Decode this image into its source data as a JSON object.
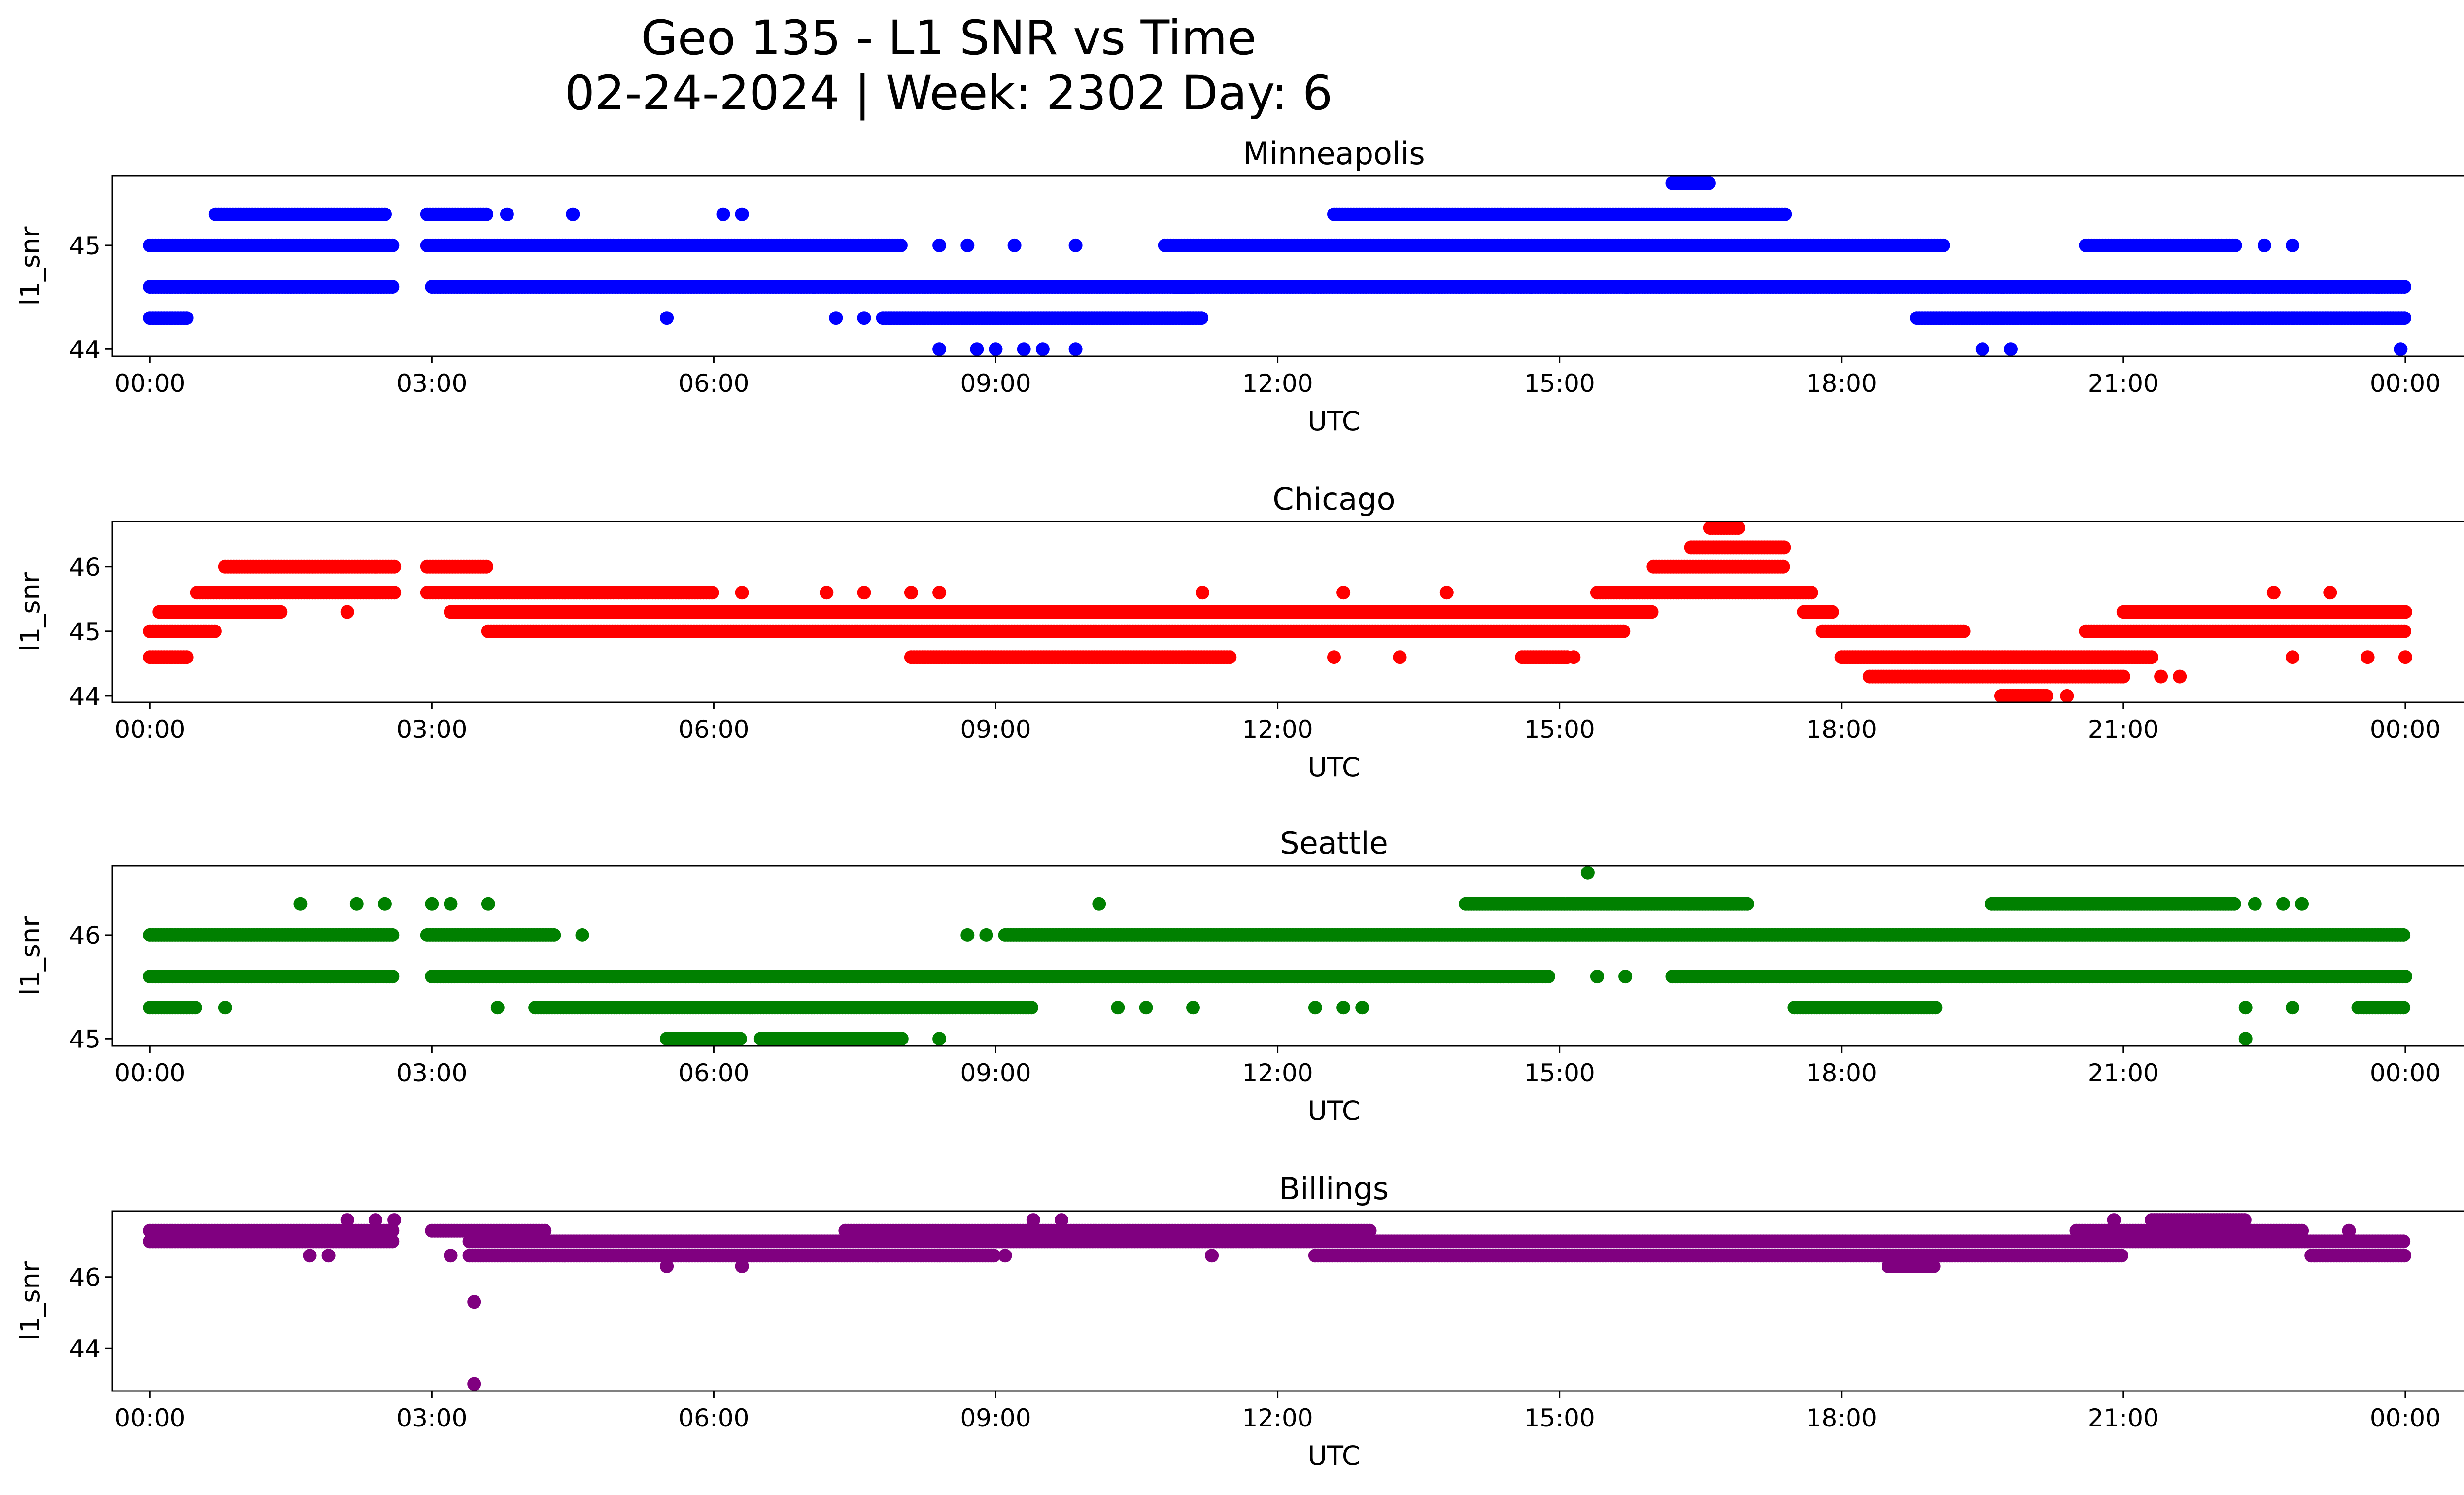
{
  "figure": {
    "title_line1": "Geo 135 - L1 SNR vs Time",
    "title_line2": "02-24-2024 | Week: 2302 Day: 6"
  },
  "chart_data": [
    {
      "type": "scatter",
      "title": "Minneapolis",
      "xlabel": "UTC",
      "ylabel": "l1_snr",
      "color": "#0000ff",
      "xlim": [
        -0.4,
        25.6
      ],
      "ylim": [
        43.93,
        45.67
      ],
      "xticks": [
        "00:00",
        "03:00",
        "06:00",
        "09:00",
        "12:00",
        "15:00",
        "18:00",
        "21:00",
        "00:00"
      ],
      "yticks": [
        44,
        45
      ],
      "bands": [
        {
          "y": 44.3,
          "ranges": [
            [
              0.0,
              0.4
            ],
            [
              18.8,
              24.0
            ]
          ]
        },
        {
          "y": 44.3,
          "ranges": [
            [
              7.8,
              11.2
            ]
          ]
        },
        {
          "y": 44.6,
          "ranges": [
            [
              0.0,
              2.6
            ],
            [
              3.0,
              11.1
            ],
            [
              10.9,
              17.0
            ],
            [
              17.0,
              24.0
            ]
          ]
        },
        {
          "y": 45.0,
          "ranges": [
            [
              0.0,
              2.6
            ],
            [
              2.95,
              8.0
            ],
            [
              10.8,
              19.1
            ],
            [
              20.6,
              22.2
            ]
          ]
        },
        {
          "y": 45.3,
          "ranges": [
            [
              0.7,
              2.5
            ],
            [
              2.95,
              3.6
            ],
            [
              12.6,
              17.4
            ]
          ]
        },
        {
          "y": 45.6,
          "ranges": [
            [
              16.2,
              16.6
            ]
          ]
        }
      ],
      "points": [
        {
          "x": 3.8,
          "y": 45.3
        },
        {
          "x": 4.5,
          "y": 45.3
        },
        {
          "x": 6.1,
          "y": 45.3
        },
        {
          "x": 6.3,
          "y": 45.3
        },
        {
          "x": 8.4,
          "y": 45.0
        },
        {
          "x": 8.7,
          "y": 45.0
        },
        {
          "x": 9.2,
          "y": 45.0
        },
        {
          "x": 9.85,
          "y": 45.0
        },
        {
          "x": 22.5,
          "y": 45.0
        },
        {
          "x": 22.8,
          "y": 45.0
        },
        {
          "x": 14.7,
          "y": 44.6
        },
        {
          "x": 15.7,
          "y": 44.6
        },
        {
          "x": 5.5,
          "y": 44.3
        },
        {
          "x": 7.3,
          "y": 44.3
        },
        {
          "x": 7.6,
          "y": 44.3
        },
        {
          "x": 8.4,
          "y": 44.0
        },
        {
          "x": 8.8,
          "y": 44.0
        },
        {
          "x": 9.0,
          "y": 44.0
        },
        {
          "x": 9.3,
          "y": 44.0
        },
        {
          "x": 9.5,
          "y": 44.0
        },
        {
          "x": 9.85,
          "y": 44.0
        },
        {
          "x": 19.5,
          "y": 44.0
        },
        {
          "x": 19.8,
          "y": 44.0
        },
        {
          "x": 23.95,
          "y": 44.0
        }
      ]
    },
    {
      "type": "scatter",
      "title": "Chicago",
      "xlabel": "UTC",
      "ylabel": "l1_snr",
      "color": "#ff0000",
      "xlim": [
        -0.4,
        25.6
      ],
      "ylim": [
        43.9,
        46.7
      ],
      "xticks": [
        "00:00",
        "03:00",
        "06:00",
        "09:00",
        "12:00",
        "15:00",
        "18:00",
        "21:00",
        "00:00"
      ],
      "yticks": [
        44,
        45,
        46
      ],
      "bands": [
        {
          "y": 44.0,
          "ranges": [
            [
              19.7,
              20.2
            ]
          ]
        },
        {
          "y": 44.3,
          "ranges": [
            [
              18.3,
              21.0
            ]
          ]
        },
        {
          "y": 44.6,
          "ranges": [
            [
              0.0,
              0.4
            ],
            [
              8.1,
              11.5
            ],
            [
              14.6,
              15.1
            ],
            [
              18.0,
              21.3
            ]
          ]
        },
        {
          "y": 45.0,
          "ranges": [
            [
              0.0,
              0.7
            ],
            [
              3.6,
              8.0
            ],
            [
              8.0,
              15.7
            ],
            [
              17.8,
              19.3
            ],
            [
              20.6,
              24.0
            ]
          ]
        },
        {
          "y": 45.3,
          "ranges": [
            [
              0.1,
              1.4
            ],
            [
              3.2,
              16.0
            ],
            [
              17.6,
              17.9
            ],
            [
              21.0,
              24.0
            ]
          ]
        },
        {
          "y": 45.6,
          "ranges": [
            [
              0.5,
              2.6
            ],
            [
              2.95,
              6.0
            ],
            [
              15.4,
              17.7
            ]
          ]
        },
        {
          "y": 46.0,
          "ranges": [
            [
              0.8,
              2.6
            ],
            [
              2.95,
              3.6
            ],
            [
              16.0,
              17.4
            ]
          ]
        },
        {
          "y": 46.3,
          "ranges": [
            [
              16.4,
              17.4
            ]
          ]
        },
        {
          "y": 46.6,
          "ranges": [
            [
              16.6,
              16.9
            ]
          ]
        }
      ],
      "points": [
        {
          "x": 6.3,
          "y": 45.6
        },
        {
          "x": 7.2,
          "y": 45.6
        },
        {
          "x": 7.6,
          "y": 45.6
        },
        {
          "x": 8.1,
          "y": 45.6
        },
        {
          "x": 8.4,
          "y": 45.6
        },
        {
          "x": 11.2,
          "y": 45.6
        },
        {
          "x": 12.7,
          "y": 45.6
        },
        {
          "x": 13.8,
          "y": 45.6
        },
        {
          "x": 22.6,
          "y": 45.6
        },
        {
          "x": 23.2,
          "y": 45.6
        },
        {
          "x": 2.1,
          "y": 45.3
        },
        {
          "x": 12.6,
          "y": 44.6
        },
        {
          "x": 13.3,
          "y": 44.6
        },
        {
          "x": 15.15,
          "y": 44.6
        },
        {
          "x": 22.8,
          "y": 44.6
        },
        {
          "x": 23.6,
          "y": 44.6
        },
        {
          "x": 24.0,
          "y": 44.6
        },
        {
          "x": 21.4,
          "y": 44.3
        },
        {
          "x": 21.6,
          "y": 44.3
        },
        {
          "x": 20.4,
          "y": 44.0
        }
      ]
    },
    {
      "type": "scatter",
      "title": "Seattle",
      "xlabel": "UTC",
      "ylabel": "l1_snr",
      "color": "#008000",
      "xlim": [
        -0.4,
        25.6
      ],
      "ylim": [
        44.93,
        46.67
      ],
      "xticks": [
        "00:00",
        "03:00",
        "06:00",
        "09:00",
        "12:00",
        "15:00",
        "18:00",
        "21:00",
        "00:00"
      ],
      "yticks": [
        45,
        46
      ],
      "bands": [
        {
          "y": 45.0,
          "ranges": [
            [
              5.5,
              6.3
            ],
            [
              6.5,
              8.0
            ]
          ]
        },
        {
          "y": 45.3,
          "ranges": [
            [
              0.0,
              0.5
            ],
            [
              4.1,
              9.4
            ],
            [
              17.5,
              19.0
            ],
            [
              23.5,
              24.0
            ]
          ]
        },
        {
          "y": 45.6,
          "ranges": [
            [
              0.0,
              2.6
            ],
            [
              3.0,
              14.9
            ],
            [
              16.2,
              24.0
            ]
          ]
        },
        {
          "y": 46.0,
          "ranges": [
            [
              0.0,
              2.6
            ],
            [
              2.95,
              4.3
            ],
            [
              9.1,
              24.0
            ]
          ]
        },
        {
          "y": 46.3,
          "ranges": [
            [
              14.0,
              17.0
            ],
            [
              19.6,
              22.2
            ]
          ]
        }
      ],
      "points": [
        {
          "x": 0.8,
          "y": 45.3
        },
        {
          "x": 3.7,
          "y": 45.3
        },
        {
          "x": 10.3,
          "y": 45.3
        },
        {
          "x": 10.6,
          "y": 45.3
        },
        {
          "x": 11.1,
          "y": 45.3
        },
        {
          "x": 12.4,
          "y": 45.3
        },
        {
          "x": 12.7,
          "y": 45.3
        },
        {
          "x": 12.9,
          "y": 45.3
        },
        {
          "x": 22.3,
          "y": 45.3
        },
        {
          "x": 22.8,
          "y": 45.3
        },
        {
          "x": 15.4,
          "y": 45.6
        },
        {
          "x": 15.7,
          "y": 45.6
        },
        {
          "x": 4.6,
          "y": 46.0
        },
        {
          "x": 8.7,
          "y": 46.0
        },
        {
          "x": 8.9,
          "y": 46.0
        },
        {
          "x": 1.6,
          "y": 46.3
        },
        {
          "x": 2.2,
          "y": 46.3
        },
        {
          "x": 2.5,
          "y": 46.3
        },
        {
          "x": 3.0,
          "y": 46.3
        },
        {
          "x": 3.2,
          "y": 46.3
        },
        {
          "x": 3.6,
          "y": 46.3
        },
        {
          "x": 10.1,
          "y": 46.3
        },
        {
          "x": 22.4,
          "y": 46.3
        },
        {
          "x": 22.7,
          "y": 46.3
        },
        {
          "x": 22.9,
          "y": 46.3
        },
        {
          "x": 15.3,
          "y": 46.6
        },
        {
          "x": 22.3,
          "y": 45.0
        },
        {
          "x": 8.4,
          "y": 45.0
        }
      ]
    },
    {
      "type": "scatter",
      "title": "Billings",
      "xlabel": "UTC",
      "ylabel": "l1_snr",
      "color": "#800080",
      "xlim": [
        -0.4,
        25.6
      ],
      "ylim": [
        42.8,
        47.85
      ],
      "xticks": [
        "00:00",
        "03:00",
        "06:00",
        "09:00",
        "12:00",
        "15:00",
        "18:00",
        "21:00",
        "00:00"
      ],
      "yticks": [
        44,
        46
      ],
      "bands": [
        {
          "y": 46.3,
          "ranges": [
            [
              18.5,
              19.0
            ]
          ]
        },
        {
          "y": 46.6,
          "ranges": [
            [
              3.4,
              9.0
            ],
            [
              12.4,
              21.0
            ],
            [
              23.0,
              24.0
            ]
          ]
        },
        {
          "y": 47.0,
          "ranges": [
            [
              0.0,
              2.6
            ],
            [
              3.4,
              24.0
            ]
          ]
        },
        {
          "y": 47.3,
          "ranges": [
            [
              0.0,
              2.6
            ],
            [
              3.0,
              4.2
            ],
            [
              7.4,
              13.0
            ],
            [
              20.5,
              22.9
            ]
          ]
        },
        {
          "y": 47.6,
          "ranges": [
            [
              21.3,
              22.3
            ]
          ]
        }
      ],
      "points": [
        {
          "x": 1.7,
          "y": 46.6
        },
        {
          "x": 1.9,
          "y": 46.6
        },
        {
          "x": 3.2,
          "y": 46.6
        },
        {
          "x": 11.3,
          "y": 46.6
        },
        {
          "x": 5.5,
          "y": 46.3
        },
        {
          "x": 6.3,
          "y": 46.3
        },
        {
          "x": 9.1,
          "y": 46.6
        },
        {
          "x": 2.1,
          "y": 47.6
        },
        {
          "x": 2.4,
          "y": 47.6
        },
        {
          "x": 2.6,
          "y": 47.6
        },
        {
          "x": 9.4,
          "y": 47.6
        },
        {
          "x": 9.7,
          "y": 47.6
        },
        {
          "x": 20.9,
          "y": 47.6
        },
        {
          "x": 3.45,
          "y": 45.3
        },
        {
          "x": 3.45,
          "y": 43.0
        },
        {
          "x": 23.4,
          "y": 47.3
        }
      ]
    }
  ]
}
